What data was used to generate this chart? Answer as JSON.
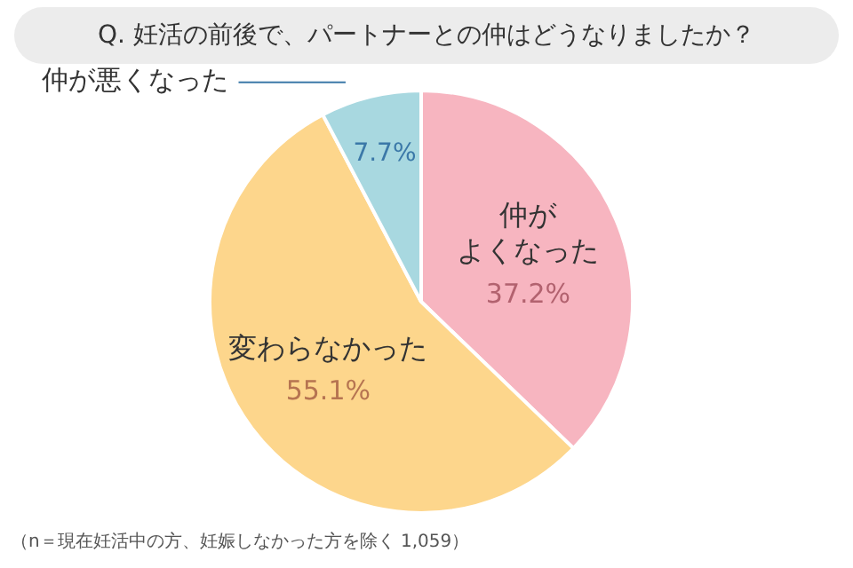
{
  "chart_data": {
    "type": "pie",
    "title": "Q. 妊活の前後で、パートナーとの仲はどうなりましたか？",
    "categories": [
      "仲がよくなった",
      "変わらなかった",
      "仲が悪くなった"
    ],
    "values": [
      37.2,
      55.1,
      7.7
    ],
    "value_labels": [
      "37.2%",
      "55.1%",
      "7.7%"
    ],
    "colors": [
      "#f7b5c0",
      "#fdd68c",
      "#a8d8e0"
    ],
    "legend": false,
    "annotations": [
      "（n＝現在妊活中の方、妊娠しなかった方を除く 1,059）"
    ]
  }
}
